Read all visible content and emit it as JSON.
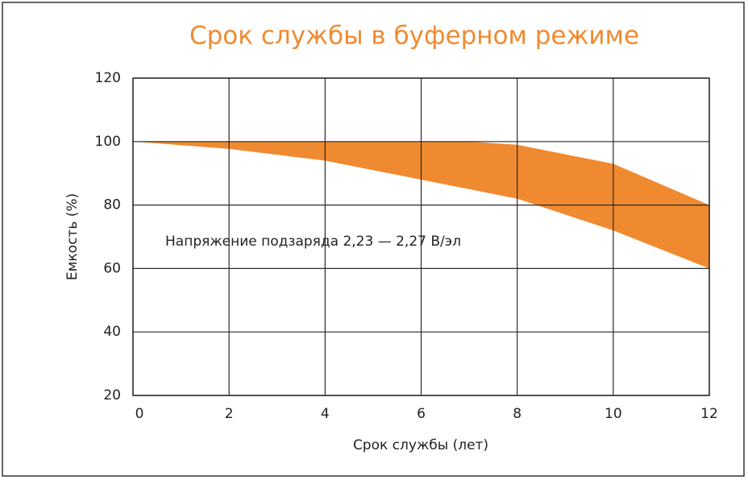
{
  "chart_data": {
    "type": "band",
    "title": "Срок службы в буферном режиме",
    "x_label": "Срок службы (лет)",
    "y_label": "Емкость (%)",
    "annotation": "Напряжение подзаряда 2,23 — 2,27 В/эл",
    "x": [
      0,
      2,
      4,
      6,
      7,
      8,
      10,
      12
    ],
    "upper": [
      100,
      100,
      100,
      100,
      100,
      99,
      93,
      80
    ],
    "lower": [
      100,
      97.7,
      94,
      88,
      85,
      82,
      72,
      60
    ],
    "color": "#f08a30",
    "title_color": "#f08a30",
    "xlim": [
      0,
      12
    ],
    "xticks": [
      0,
      2,
      4,
      6,
      8,
      10,
      12
    ],
    "ylim": [
      20,
      120
    ],
    "yticks": [
      20,
      40,
      60,
      80,
      100,
      120
    ],
    "grid": true
  }
}
